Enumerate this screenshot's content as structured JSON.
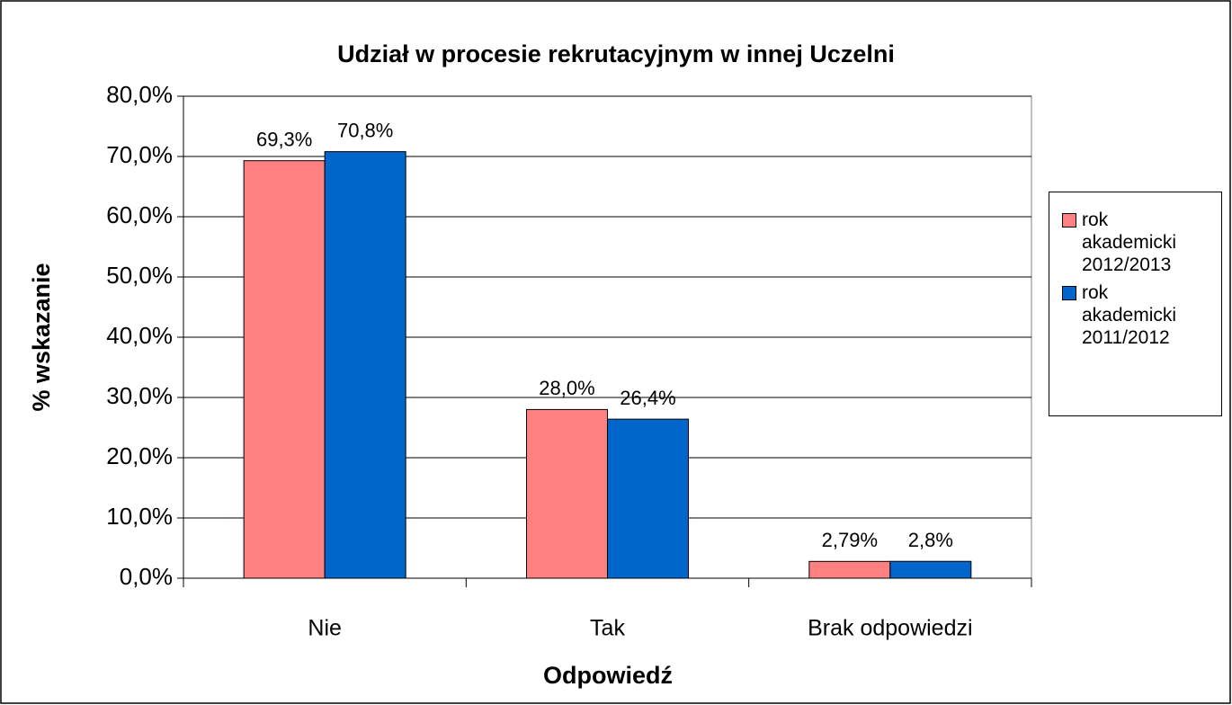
{
  "chart_data": {
    "type": "bar",
    "title": "Udział w procesie rekrutacyjnym w innej Uczelni",
    "x_label": "Odpowiedź",
    "y_label": "% wskazanie",
    "categories": [
      "Nie",
      "Tak",
      "Brak odpowiedzi"
    ],
    "series": [
      {
        "name": "rok akademicki 2012/2013",
        "color": "#ff8080",
        "values": [
          69.3,
          28.0,
          2.79
        ],
        "value_labels": [
          "69,3%",
          "28,0%",
          "2,79%"
        ]
      },
      {
        "name": "rok akademicki 2011/2012",
        "color": "#0066cc",
        "values": [
          70.8,
          26.4,
          2.8
        ],
        "value_labels": [
          "70,8%",
          "26,4%",
          "2,8%"
        ]
      }
    ],
    "ylim": [
      0,
      80
    ],
    "yticks": [
      {
        "value": 0,
        "label": "0,0%"
      },
      {
        "value": 10,
        "label": "10,0%"
      },
      {
        "value": 20,
        "label": "20,0%"
      },
      {
        "value": 30,
        "label": "30,0%"
      },
      {
        "value": 40,
        "label": "40,0%"
      },
      {
        "value": 50,
        "label": "50,0%"
      },
      {
        "value": 60,
        "label": "60,0%"
      },
      {
        "value": 70,
        "label": "70,0%"
      },
      {
        "value": 80,
        "label": "80,0%"
      }
    ],
    "grid": true,
    "legend": "right"
  }
}
